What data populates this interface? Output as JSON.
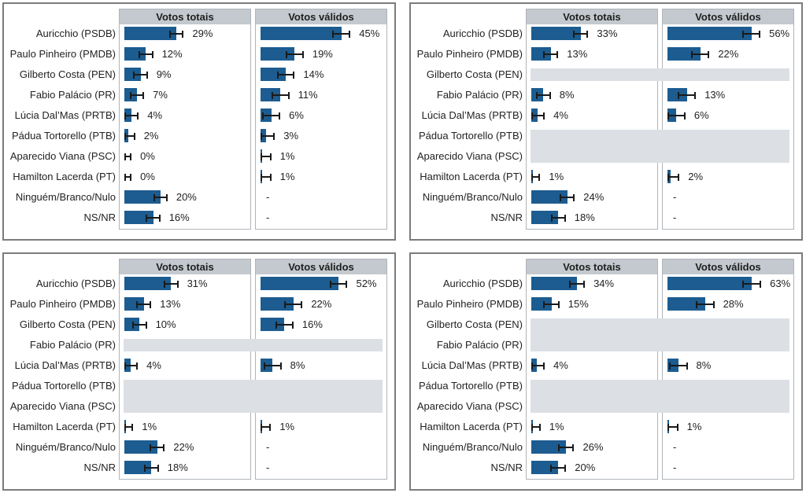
{
  "figure": {
    "description": "Four small-multiple horizontal bar chart panels of poll results with error bars",
    "columns": [
      "Votos totais",
      "Votos válidos"
    ],
    "value_suffix": "%",
    "no_value_label": "-",
    "colors": {
      "bar": "#1c5c90",
      "header_bg": "#c3c9ce",
      "excluded_band_bg": "#dce0e4",
      "column_border": "#b0b5ba",
      "panel_border": "#7a7c7f",
      "error_bar": "#1a1a1a",
      "text": "#1f1f1f"
    }
  },
  "chart_data": [
    {
      "type": "bar",
      "position": "top-left",
      "columns": [
        "Votos totais",
        "Votos válidos"
      ],
      "categories": [
        "Auricchio (PSDB)",
        "Paulo Pinheiro (PMDB)",
        "Gilberto Costa (PEN)",
        "Fabio Palácio (PR)",
        "Lúcia Dal’Mas (PRTB)",
        "Pádua Tortorello (PTB)",
        "Aparecido Viana (PSC)",
        "Hamilton Lacerda (PT)",
        "Ninguém/Branco/Nulo",
        "NS/NR"
      ],
      "series": [
        {
          "name": "Votos totais",
          "values": [
            29,
            12,
            9,
            7,
            4,
            2,
            0,
            0,
            20,
            16
          ]
        },
        {
          "name": "Votos válidos",
          "values": [
            45,
            19,
            14,
            11,
            6,
            3,
            1,
            1,
            null,
            null
          ]
        }
      ],
      "excluded_categories": [],
      "value_suffix": "%",
      "xmax": 70,
      "margin_pp": [
        4,
        5
      ],
      "grid": false
    },
    {
      "type": "bar",
      "position": "top-right",
      "columns": [
        "Votos totais",
        "Votos válidos"
      ],
      "categories": [
        "Auricchio (PSDB)",
        "Paulo Pinheiro (PMDB)",
        "Gilberto Costa (PEN)",
        "Fabio Palácio (PR)",
        "Lúcia Dal’Mas (PRTB)",
        "Pádua Tortorello (PTB)",
        "Aparecido Viana (PSC)",
        "Hamilton Lacerda (PT)",
        "Ninguém/Branco/Nulo",
        "NS/NR"
      ],
      "series": [
        {
          "name": "Votos totais",
          "values": [
            33,
            13,
            null,
            8,
            4,
            null,
            null,
            1,
            24,
            18
          ]
        },
        {
          "name": "Votos válidos",
          "values": [
            56,
            22,
            null,
            13,
            6,
            null,
            null,
            2,
            null,
            null
          ]
        }
      ],
      "excluded_categories": [
        "Gilberto Costa (PEN)",
        "Pádua Tortorello (PTB)",
        "Aparecido Viana (PSC)"
      ],
      "value_suffix": "%",
      "xmax": 84,
      "margin_pp": [
        5,
        6
      ],
      "grid": false
    },
    {
      "type": "bar",
      "position": "bottom-left",
      "columns": [
        "Votos totais",
        "Votos válidos"
      ],
      "categories": [
        "Auricchio (PSDB)",
        "Paulo Pinheiro (PMDB)",
        "Gilberto Costa (PEN)",
        "Fabio Palácio (PR)",
        "Lúcia Dal’Mas (PRTB)",
        "Pádua Tortorello (PTB)",
        "Aparecido Viana (PSC)",
        "Hamilton Lacerda (PT)",
        "Ninguém/Branco/Nulo",
        "NS/NR"
      ],
      "series": [
        {
          "name": "Votos totais",
          "values": [
            31,
            13,
            10,
            null,
            4,
            null,
            null,
            1,
            22,
            18
          ]
        },
        {
          "name": "Votos válidos",
          "values": [
            52,
            22,
            16,
            null,
            8,
            null,
            null,
            1,
            null,
            null
          ]
        }
      ],
      "excluded_categories": [
        "Fabio Palácio (PR)",
        "Pádua Tortorello (PTB)",
        "Aparecido Viana (PSC)"
      ],
      "value_suffix": "%",
      "xmax": 84,
      "margin_pp": [
        5,
        6
      ],
      "grid": false
    },
    {
      "type": "bar",
      "position": "bottom-right",
      "columns": [
        "Votos totais",
        "Votos válidos"
      ],
      "categories": [
        "Auricchio (PSDB)",
        "Paulo Pinheiro (PMDB)",
        "Gilberto Costa (PEN)",
        "Fabio Palácio (PR)",
        "Lúcia Dal’Mas (PRTB)",
        "Pádua Tortorello (PTB)",
        "Aparecido Viana (PSC)",
        "Hamilton Lacerda (PT)",
        "Ninguém/Branco/Nulo",
        "NS/NR"
      ],
      "series": [
        {
          "name": "Votos totais",
          "values": [
            34,
            15,
            null,
            null,
            4,
            null,
            null,
            1,
            26,
            20
          ]
        },
        {
          "name": "Votos válidos",
          "values": [
            63,
            28,
            null,
            null,
            8,
            null,
            null,
            1,
            null,
            null
          ]
        }
      ],
      "excluded_categories": [
        "Gilberto Costa (PEN)",
        "Fabio Palácio (PR)",
        "Pádua Tortorello (PTB)",
        "Aparecido Viana (PSC)"
      ],
      "value_suffix": "%",
      "xmax": 94,
      "margin_pp": [
        6,
        7
      ],
      "grid": false
    }
  ]
}
